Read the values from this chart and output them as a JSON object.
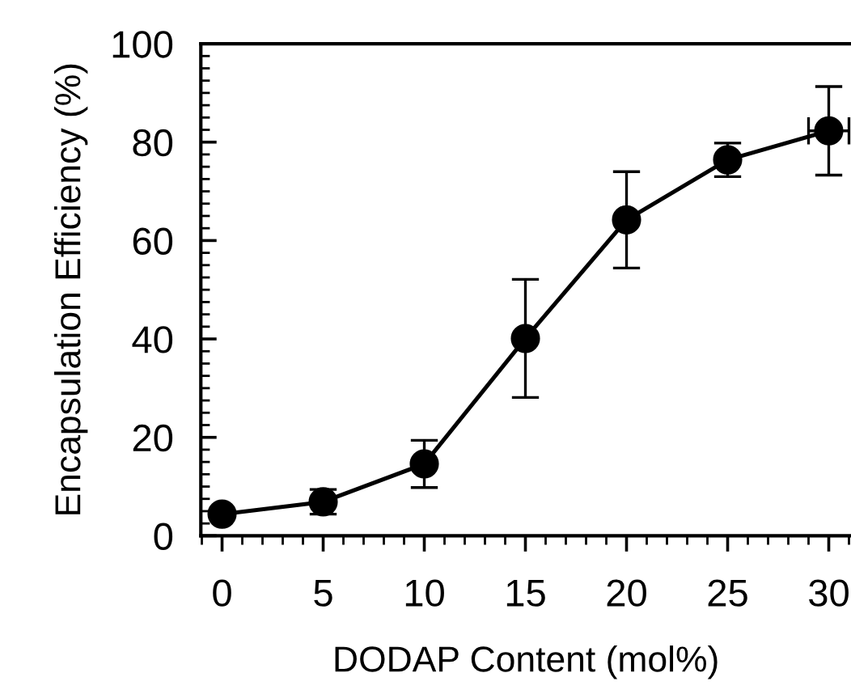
{
  "chart_data": {
    "type": "line",
    "xlabel": "DODAP Content (mol%)",
    "ylabel": "Encapsulation Efficiency (%)",
    "x": [
      0,
      5,
      10,
      15,
      20,
      25,
      30
    ],
    "series": [
      {
        "color": "#000000",
        "values": [
          4.4,
          6.9,
          14.6,
          40.1,
          64.2,
          76.4,
          82.3
        ],
        "errors": [
          null,
          2.5,
          4.8,
          12,
          9.8,
          3.4,
          9
        ],
        "xerrors": [
          null,
          null,
          null,
          null,
          null,
          null,
          1
        ]
      }
    ],
    "xlim": [
      -1.05,
      31.1
    ],
    "ylim": [
      0,
      100
    ],
    "xticks": [
      0,
      5,
      10,
      15,
      20,
      25,
      30
    ],
    "yticks": [
      0,
      20,
      40,
      60,
      80,
      100
    ],
    "marker": "circle",
    "line_style": "solid",
    "grid": false,
    "legend": false
  }
}
